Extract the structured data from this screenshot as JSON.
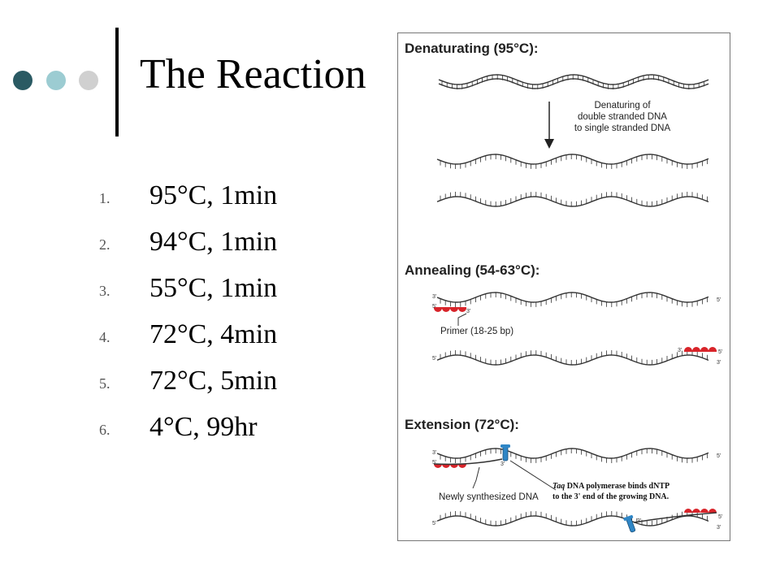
{
  "slide": {
    "title": "The Reaction",
    "accent_colors": [
      "#2a5a63",
      "#9cccd2",
      "#d0d0d0"
    ]
  },
  "steps": [
    {
      "number": "1.",
      "text": "95°C, 1min"
    },
    {
      "number": "2.",
      "text": "94°C, 1min"
    },
    {
      "number": "3.",
      "text": "55°C, 1min"
    },
    {
      "number": "4.",
      "text": "72°C, 4min"
    },
    {
      "number": "5.",
      "text": "72°C, 5min"
    },
    {
      "number": "6.",
      "text": "4°C, 99hr"
    }
  ],
  "diagram": {
    "denaturing": {
      "heading": "Denaturating (95°C):",
      "note_lines": [
        "Denaturing of",
        "double stranded DNA",
        "to single stranded DNA"
      ]
    },
    "annealing": {
      "heading": "Annealing (54-63°C):",
      "primer_label": "Primer (18-25 bp)"
    },
    "extension": {
      "heading": "Extension (72°C):",
      "synth_label": "Newly synthesized DNA",
      "taq_word": "Taq",
      "taq_line1_rest": " DNA polymerase binds dNTP",
      "taq_line2": "to the 3' end of the growing DNA."
    },
    "end_labels": {
      "three_prime": "3'",
      "five_prime": "5'"
    },
    "colors": {
      "primer": "#d8242a",
      "polymerase": "#2f86c6",
      "strand": "#333333"
    }
  }
}
